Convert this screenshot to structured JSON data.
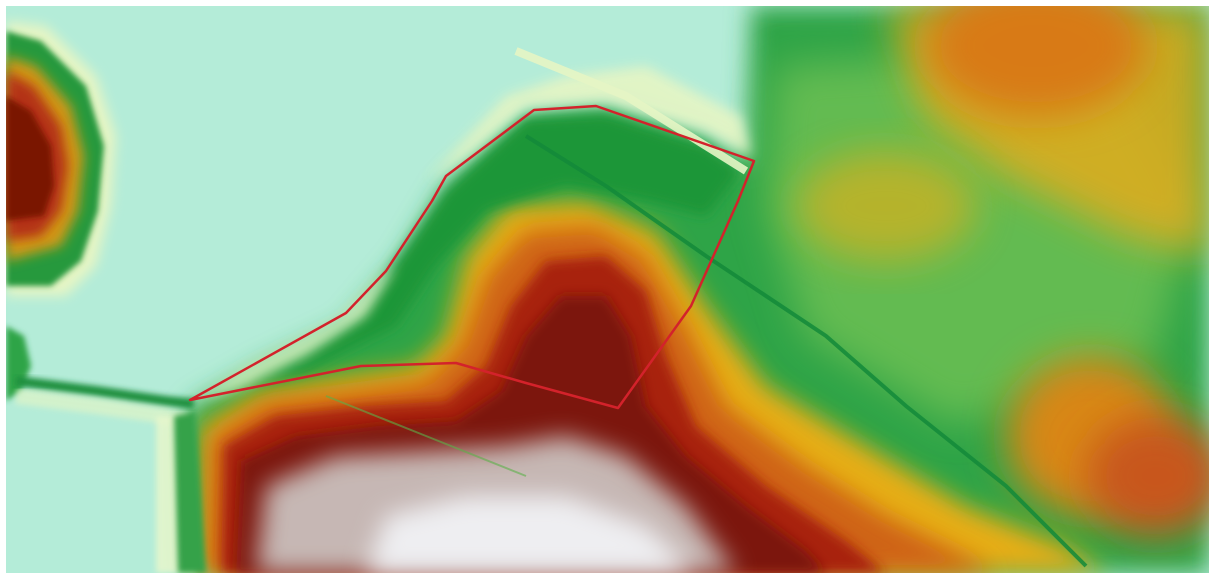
{
  "map": {
    "kind": "elevation-heatmap",
    "legend": "none",
    "palette": {
      "lowland": "#b4ecd8",
      "pale": "#e6f5c4",
      "green": "#1f9a3c",
      "light_green": "#6cbf4a",
      "yellow": "#e8b21a",
      "orange": "#d66d12",
      "red": "#b42a10",
      "dark_red": "#7a1206",
      "peak": "#eeeef1",
      "boundary": "#d3222b"
    },
    "overlay": {
      "type": "field-boundary-polygon",
      "color": "#d3222b"
    }
  }
}
